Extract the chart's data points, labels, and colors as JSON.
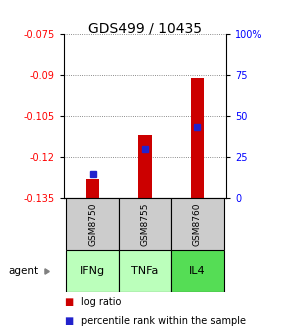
{
  "title": "GDS499 / 10435",
  "samples": [
    "GSM8750",
    "GSM8755",
    "GSM8760"
  ],
  "agents": [
    "IFNg",
    "TNFa",
    "IL4"
  ],
  "log_ratios": [
    -0.128,
    -0.112,
    -0.091
  ],
  "percentile_ranks": [
    15,
    30,
    43
  ],
  "ylim": [
    -0.135,
    -0.075
  ],
  "y_ticks_left": [
    -0.075,
    -0.09,
    -0.105,
    -0.12,
    -0.135
  ],
  "y_ticks_right": [
    100,
    75,
    50,
    25,
    0
  ],
  "bar_color": "#cc0000",
  "dot_color": "#2222cc",
  "sample_bg": "#cccccc",
  "agent_colors": [
    "#bbffbb",
    "#bbffbb",
    "#55dd55"
  ],
  "title_fontsize": 10,
  "tick_fontsize": 7,
  "bar_width": 0.25
}
